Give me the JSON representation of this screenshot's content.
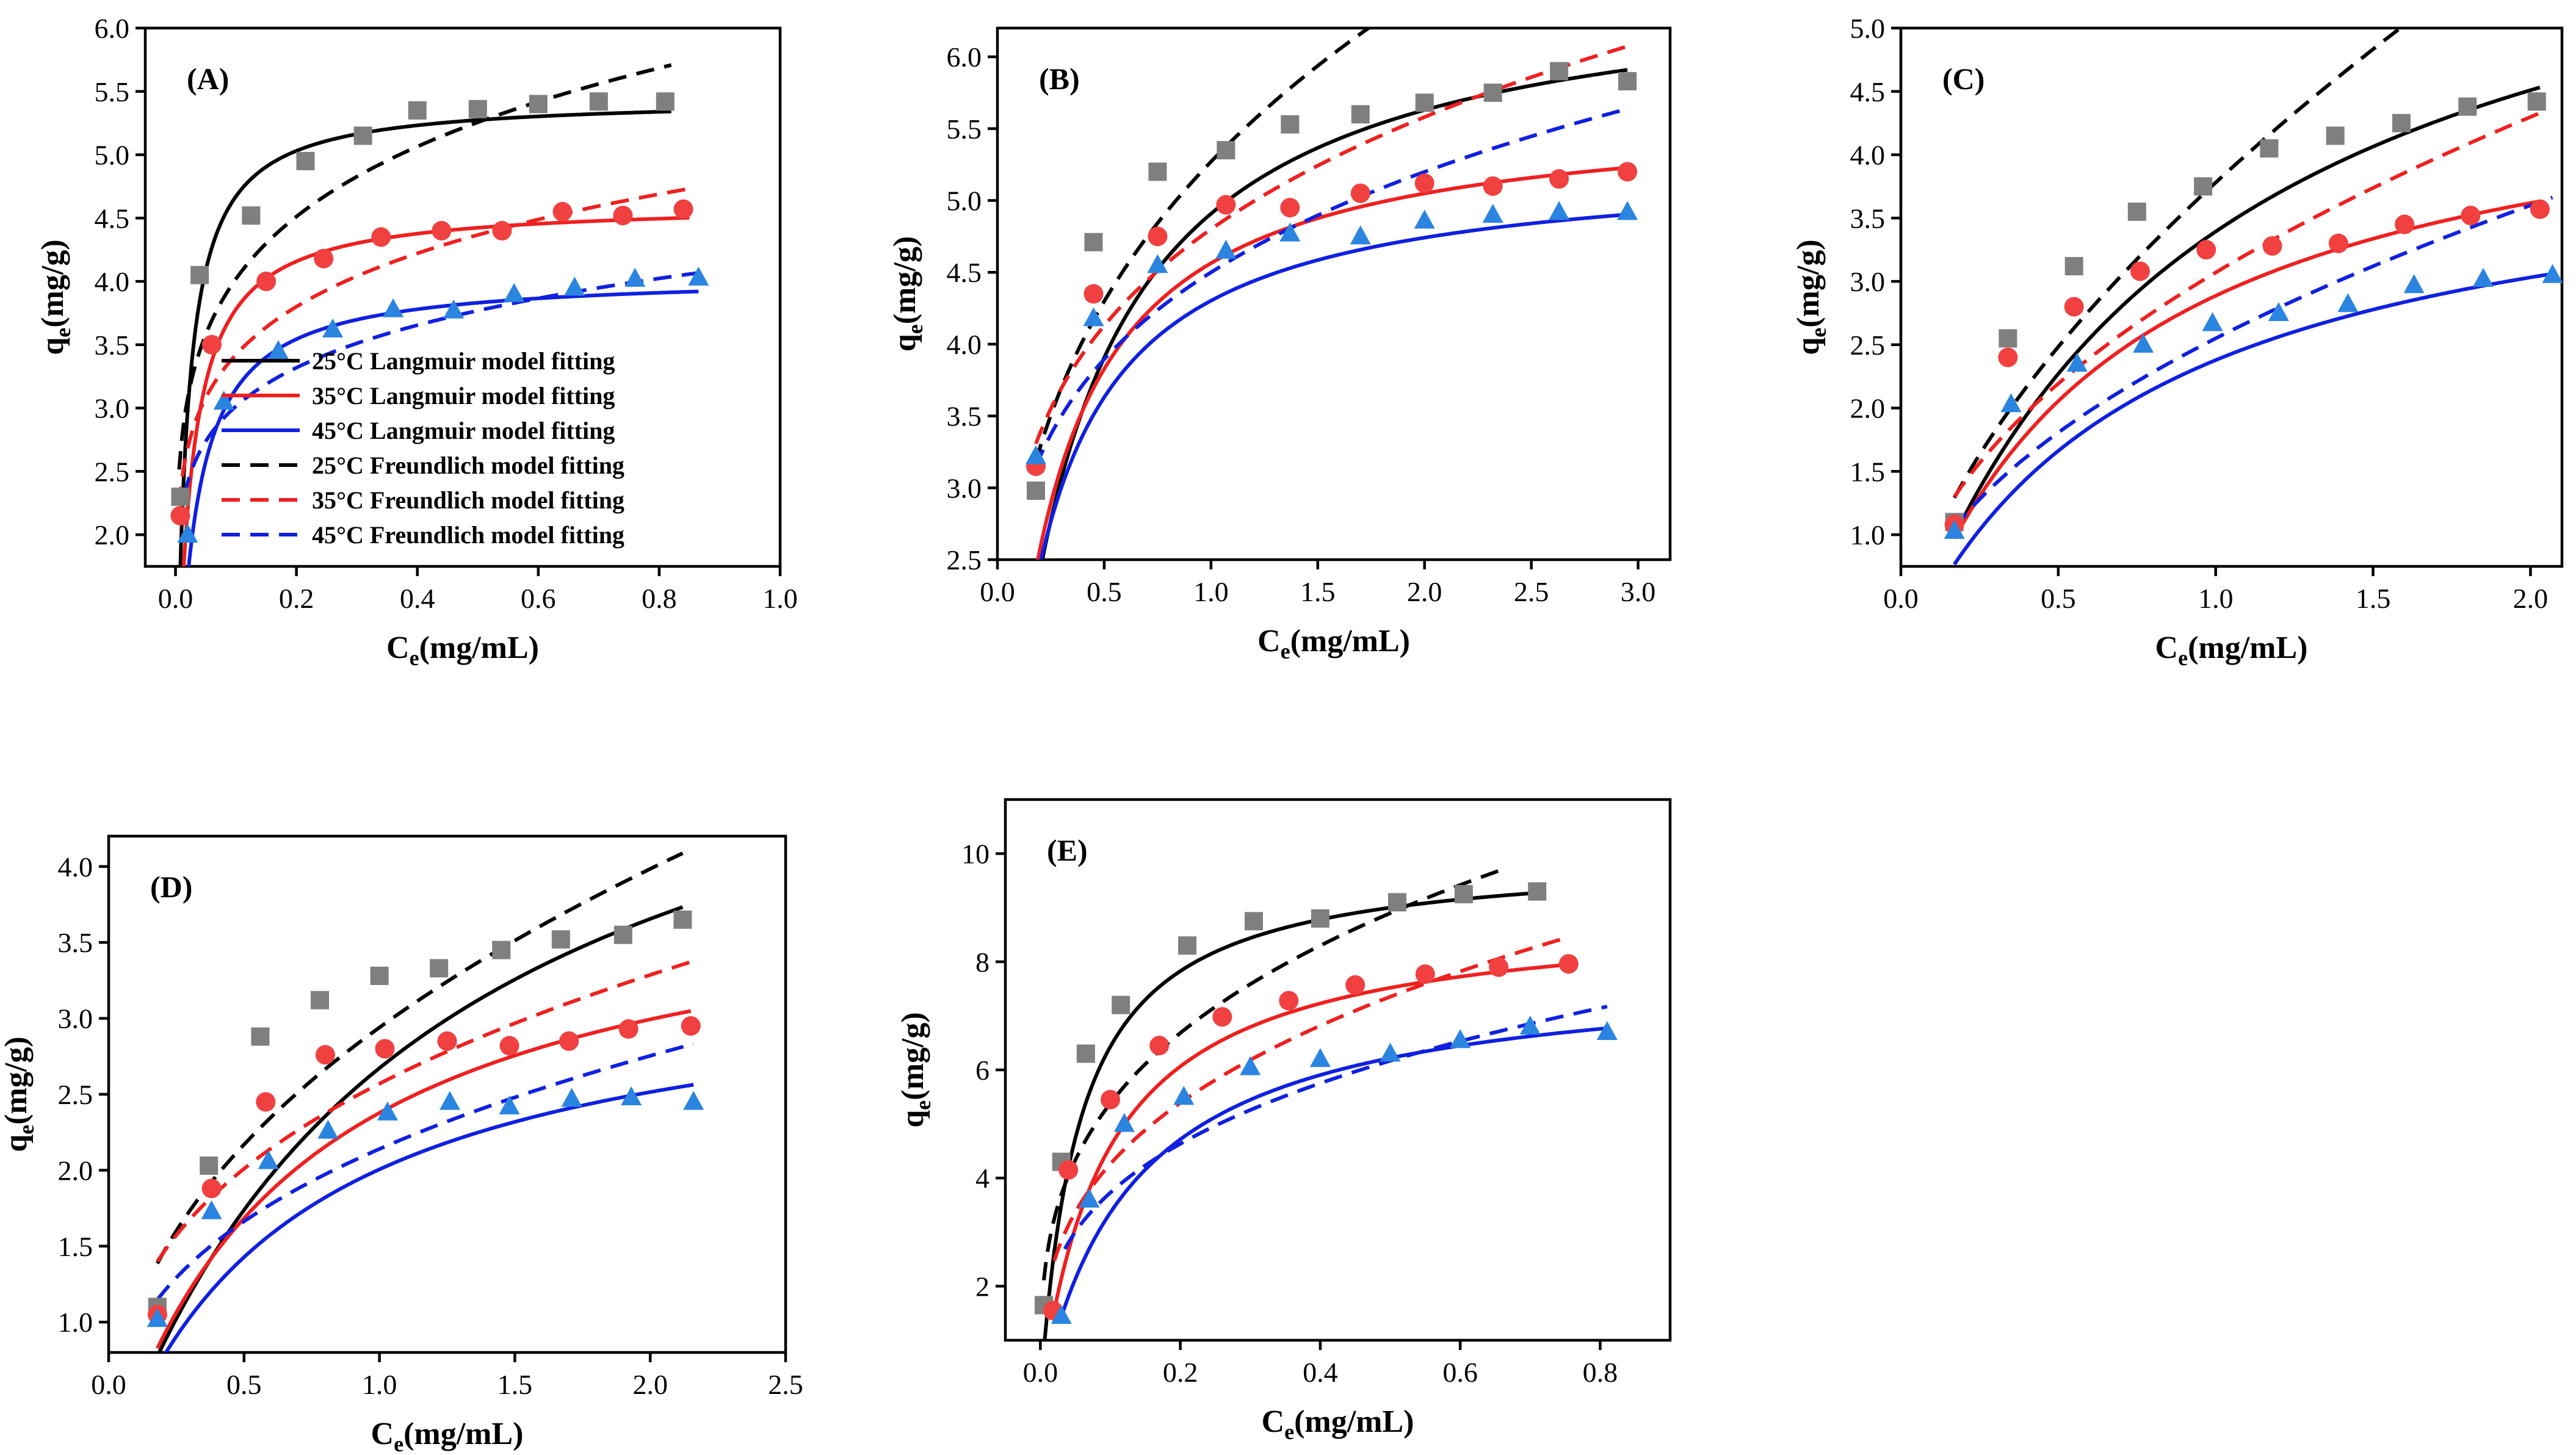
{
  "colors": {
    "t25": "#000000",
    "t35": "#ef2020",
    "t45": "#1020e0",
    "m25": "#7f7f7f",
    "m35": "#f04040",
    "m45": "#2a84e0"
  },
  "legend": [
    {
      "label": "25°C Langmuir model fitting",
      "temp": "t25",
      "dash": false
    },
    {
      "label": "35°C Langmuir model fitting",
      "temp": "t35",
      "dash": false
    },
    {
      "label": "45°C Langmuir model fitting",
      "temp": "t45",
      "dash": false
    },
    {
      "label": "25°C Freundlich model fitting",
      "temp": "t25",
      "dash": true
    },
    {
      "label": "35°C Freundlich model fitting",
      "temp": "t35",
      "dash": true
    },
    {
      "label": "45°C Freundlich model fitting",
      "temp": "t45",
      "dash": true
    }
  ],
  "axis_text": {
    "xlabel_main": "C",
    "xlabel_sub": "e",
    "xlabel_unit": "(mg/mL)",
    "ylabel_main": "q",
    "ylabel_sub": "e",
    "ylabel_unit": "(mg/g)"
  },
  "chart_data": [
    {
      "type": "scatter",
      "panel": "(A)",
      "xlabel": "Ce(mg/mL)",
      "ylabel": "qe(mg/g)",
      "xlim": [
        -0.05,
        1.0
      ],
      "ylim": [
        1.75,
        6.0
      ],
      "xticks": [
        "0.0",
        "0.2",
        "0.4",
        "0.6",
        "0.8",
        "1.0"
      ],
      "yticks": [
        "2.0",
        "2.5",
        "3.0",
        "3.5",
        "4.0",
        "4.5",
        "5.0",
        "5.5",
        "6.0"
      ],
      "has_legend": true,
      "series": [
        {
          "name": "25°C",
          "marker": "square",
          "x": [
            0.008,
            0.04,
            0.125,
            0.215,
            0.31,
            0.4,
            0.5,
            0.6,
            0.7,
            0.81
          ],
          "y": [
            2.3,
            4.05,
            4.52,
            4.95,
            5.15,
            5.35,
            5.36,
            5.4,
            5.42,
            5.42
          ],
          "langmuir": {
            "qm": 5.45,
            "kl": 60,
            "xmin": 0.006,
            "xmax": 0.82
          },
          "freundlich": {
            "kf": 5.9,
            "n": 6.0,
            "xmin": 0.006,
            "xmax": 0.82
          }
        },
        {
          "name": "35°C",
          "marker": "circle",
          "x": [
            0.008,
            0.06,
            0.15,
            0.245,
            0.34,
            0.44,
            0.54,
            0.64,
            0.74,
            0.84
          ],
          "y": [
            2.15,
            3.5,
            4.0,
            4.18,
            4.35,
            4.4,
            4.4,
            4.55,
            4.52,
            4.57
          ],
          "langmuir": {
            "qm": 4.62,
            "kl": 45,
            "xmin": 0.006,
            "xmax": 0.85
          },
          "freundlich": {
            "kf": 4.85,
            "n": 6.6,
            "xmin": 0.006,
            "xmax": 0.85
          }
        },
        {
          "name": "45°C",
          "marker": "triangle",
          "x": [
            0.02,
            0.08,
            0.17,
            0.26,
            0.36,
            0.46,
            0.56,
            0.66,
            0.76,
            0.865
          ],
          "y": [
            2.0,
            3.05,
            3.45,
            3.62,
            3.78,
            3.77,
            3.9,
            3.95,
            4.02,
            4.03
          ],
          "langmuir": {
            "qm": 4.05,
            "kl": 35,
            "xmin": 0.012,
            "xmax": 0.865
          },
          "freundlich": {
            "kf": 4.15,
            "n": 7.2,
            "xmin": 0.015,
            "xmax": 0.865
          }
        }
      ]
    },
    {
      "type": "scatter",
      "panel": "(B)",
      "xlabel": "Ce(mg/mL)",
      "ylabel": "qe(mg/g)",
      "xlim": [
        0.0,
        3.15
      ],
      "ylim": [
        2.5,
        6.2
      ],
      "xticks": [
        "0.0",
        "0.5",
        "1.0",
        "1.5",
        "2.0",
        "2.5",
        "3.0"
      ],
      "yticks": [
        "2.5",
        "3.0",
        "3.5",
        "4.0",
        "4.5",
        "5.0",
        "5.5",
        "6.0"
      ],
      "has_legend": false,
      "series": [
        {
          "name": "25°C",
          "marker": "square",
          "x": [
            0.18,
            0.45,
            0.75,
            1.07,
            1.37,
            1.7,
            2.0,
            2.32,
            2.63,
            2.95
          ],
          "y": [
            2.98,
            4.71,
            5.2,
            5.35,
            5.53,
            5.6,
            5.68,
            5.75,
            5.9,
            5.83
          ],
          "langmuir": {
            "qm": 6.6,
            "kl": 2.9,
            "xmin": 0.18,
            "xmax": 2.95
          },
          "freundlich": {
            "kf": 5.27,
            "n": 3.4,
            "xmin": 0.18,
            "xmax": 2.95
          }
        },
        {
          "name": "35°C",
          "marker": "circle",
          "x": [
            0.18,
            0.45,
            0.75,
            1.07,
            1.37,
            1.7,
            2.0,
            2.32,
            2.63,
            2.95
          ],
          "y": [
            3.15,
            4.35,
            4.75,
            4.97,
            4.95,
            5.05,
            5.12,
            5.1,
            5.15,
            5.2
          ],
          "langmuir": {
            "qm": 5.65,
            "kl": 4.2,
            "xmin": 0.18,
            "xmax": 2.95
          },
          "freundlich": {
            "kf": 4.8,
            "n": 4.6,
            "xmin": 0.18,
            "xmax": 2.95
          }
        },
        {
          "name": "45°C",
          "marker": "triangle",
          "x": [
            0.18,
            0.45,
            0.75,
            1.07,
            1.37,
            1.7,
            2.0,
            2.32,
            2.63,
            2.95
          ],
          "y": [
            3.22,
            4.18,
            4.55,
            4.65,
            4.77,
            4.75,
            4.86,
            4.9,
            4.92,
            4.92
          ],
          "langmuir": {
            "qm": 5.28,
            "kl": 4.4,
            "xmin": 0.18,
            "xmax": 2.95
          },
          "freundlich": {
            "kf": 4.5,
            "n": 4.8,
            "xmin": 0.18,
            "xmax": 2.95
          }
        }
      ]
    },
    {
      "type": "scatter",
      "panel": "(C)",
      "xlabel": "Ce(mg/mL)",
      "ylabel": "qe(mg/g)",
      "xlim": [
        0.0,
        2.1
      ],
      "ylim": [
        0.75,
        5.0
      ],
      "xticks": [
        "0.0",
        "0.5",
        "1.0",
        "1.5",
        "2.0"
      ],
      "yticks": [
        "1.0",
        "1.5",
        "2.0",
        "2.5",
        "3.0",
        "3.5",
        "4.0",
        "4.5",
        "5.0"
      ],
      "has_legend": false,
      "series": [
        {
          "name": "25°C",
          "marker": "square",
          "x": [
            0.17,
            0.34,
            0.55,
            0.75,
            0.96,
            1.17,
            1.38,
            1.59,
            1.8,
            2.02
          ],
          "y": [
            1.1,
            2.55,
            3.12,
            3.55,
            3.75,
            4.05,
            4.15,
            4.25,
            4.38,
            4.42
          ],
          "langmuir": {
            "qm": 6.72,
            "kl": 1.02,
            "xmin": 0.17,
            "xmax": 2.03
          },
          "freundlich": {
            "kf": 3.78,
            "n": 1.65,
            "xmin": 0.17,
            "xmax": 2.03
          }
        },
        {
          "name": "35°C",
          "marker": "circle",
          "x": [
            0.17,
            0.34,
            0.55,
            0.76,
            0.97,
            1.18,
            1.39,
            1.6,
            1.81,
            2.03
          ],
          "y": [
            1.08,
            2.4,
            2.8,
            3.08,
            3.25,
            3.28,
            3.3,
            3.45,
            3.52,
            3.57
          ],
          "langmuir": {
            "qm": 4.85,
            "kl": 1.47,
            "xmin": 0.17,
            "xmax": 2.03
          },
          "freundlich": {
            "kf": 3.07,
            "n": 2.06,
            "xmin": 0.17,
            "xmax": 2.03
          }
        },
        {
          "name": "45°C",
          "marker": "triangle",
          "x": [
            0.17,
            0.35,
            0.56,
            0.77,
            0.99,
            1.2,
            1.42,
            1.63,
            1.85,
            2.07
          ],
          "y": [
            1.03,
            2.03,
            2.35,
            2.5,
            2.67,
            2.75,
            2.82,
            2.97,
            3.02,
            3.05
          ],
          "langmuir": {
            "qm": 4.18,
            "kl": 1.32,
            "xmin": 0.17,
            "xmax": 2.07
          },
          "freundlich": {
            "kf": 2.55,
            "n": 2.01,
            "xmin": 0.17,
            "xmax": 2.07
          }
        }
      ]
    },
    {
      "type": "scatter",
      "panel": "(D)",
      "xlabel": "Ce(mg/mL)",
      "ylabel": "qe(mg/g)",
      "xlim": [
        0.0,
        2.5
      ],
      "ylim": [
        0.8,
        4.2
      ],
      "xticks": [
        "0.0",
        "0.5",
        "1.0",
        "1.5",
        "2.0",
        "2.5"
      ],
      "yticks": [
        "1.0",
        "1.5",
        "2.0",
        "2.5",
        "3.0",
        "3.5",
        "4.0"
      ],
      "has_legend": false,
      "series": [
        {
          "name": "25°C",
          "marker": "square",
          "x": [
            0.18,
            0.37,
            0.56,
            0.78,
            1.0,
            1.22,
            1.45,
            1.67,
            1.9,
            2.12
          ],
          "y": [
            1.1,
            2.03,
            2.88,
            3.12,
            3.28,
            3.33,
            3.45,
            3.52,
            3.55,
            3.65
          ],
          "langmuir": {
            "qm": 5.78,
            "kl": 0.86,
            "xmin": 0.18,
            "xmax": 2.12
          },
          "freundlich": {
            "kf": 2.94,
            "n": 2.28,
            "xmin": 0.18,
            "xmax": 2.12
          }
        },
        {
          "name": "35°C",
          "marker": "circle",
          "x": [
            0.18,
            0.38,
            0.58,
            0.8,
            1.02,
            1.25,
            1.48,
            1.7,
            1.92,
            2.15
          ],
          "y": [
            1.05,
            1.88,
            2.45,
            2.76,
            2.8,
            2.85,
            2.82,
            2.85,
            2.93,
            2.95
          ],
          "langmuir": {
            "qm": 4.04,
            "kl": 1.43,
            "xmin": 0.18,
            "xmax": 2.15
          },
          "freundlich": {
            "kf": 2.57,
            "n": 2.82,
            "xmin": 0.18,
            "xmax": 2.15
          }
        },
        {
          "name": "45°C",
          "marker": "triangle",
          "x": [
            0.18,
            0.38,
            0.59,
            0.81,
            1.03,
            1.26,
            1.48,
            1.71,
            1.93,
            2.16
          ],
          "y": [
            1.02,
            1.73,
            2.06,
            2.26,
            2.38,
            2.45,
            2.42,
            2.47,
            2.48,
            2.45
          ],
          "langmuir": {
            "qm": 3.37,
            "kl": 1.47,
            "xmin": 0.18,
            "xmax": 2.16
          },
          "freundlich": {
            "kf": 2.14,
            "n": 2.75,
            "xmin": 0.18,
            "xmax": 2.16
          }
        }
      ]
    },
    {
      "type": "scatter",
      "panel": "(E)",
      "xlabel": "Ce(mg/mL)",
      "ylabel": "qe(mg/g)",
      "xlim": [
        -0.05,
        0.9
      ],
      "ylim": [
        1.0,
        11.0
      ],
      "xticks": [
        "0.0",
        "0.2",
        "0.4",
        "0.6",
        "0.8"
      ],
      "yticks": [
        "2",
        "4",
        "6",
        "8",
        "10"
      ],
      "has_legend": false,
      "series": [
        {
          "name": "25°C",
          "marker": "square",
          "x": [
            0.005,
            0.03,
            0.065,
            0.115,
            0.21,
            0.305,
            0.4,
            0.51,
            0.605,
            0.71
          ],
          "y": [
            1.65,
            4.3,
            6.3,
            7.2,
            8.3,
            8.75,
            8.8,
            9.1,
            9.25,
            9.3
          ],
          "langmuir": {
            "qm": 10.0,
            "kl": 18,
            "xmin": 0.006,
            "xmax": 0.71
          },
          "freundlich": {
            "kf": 11.05,
            "n": 3.2,
            "xmin": 0.005,
            "xmax": 0.66
          }
        },
        {
          "name": "35°C",
          "marker": "circle",
          "x": [
            0.018,
            0.04,
            0.1,
            0.17,
            0.26,
            0.355,
            0.45,
            0.55,
            0.655,
            0.755
          ],
          "y": [
            1.55,
            4.15,
            5.45,
            6.45,
            6.98,
            7.28,
            7.57,
            7.77,
            7.9,
            7.96
          ],
          "langmuir": {
            "qm": 8.95,
            "kl": 10.5,
            "xmin": 0.018,
            "xmax": 0.76
          },
          "freundlich": {
            "kf": 9.3,
            "n": 2.95,
            "xmin": 0.02,
            "xmax": 0.75
          }
        },
        {
          "name": "45°C",
          "marker": "triangle",
          "x": [
            0.03,
            0.07,
            0.12,
            0.205,
            0.3,
            0.4,
            0.5,
            0.6,
            0.7,
            0.81
          ],
          "y": [
            1.45,
            3.6,
            5.0,
            5.5,
            6.05,
            6.2,
            6.3,
            6.55,
            6.8,
            6.7
          ],
          "langmuir": {
            "qm": 7.9,
            "kl": 7.4,
            "xmin": 0.03,
            "xmax": 0.81
          },
          "freundlich": {
            "kf": 7.66,
            "n": 3.2,
            "xmin": 0.035,
            "xmax": 0.81
          }
        }
      ]
    }
  ]
}
